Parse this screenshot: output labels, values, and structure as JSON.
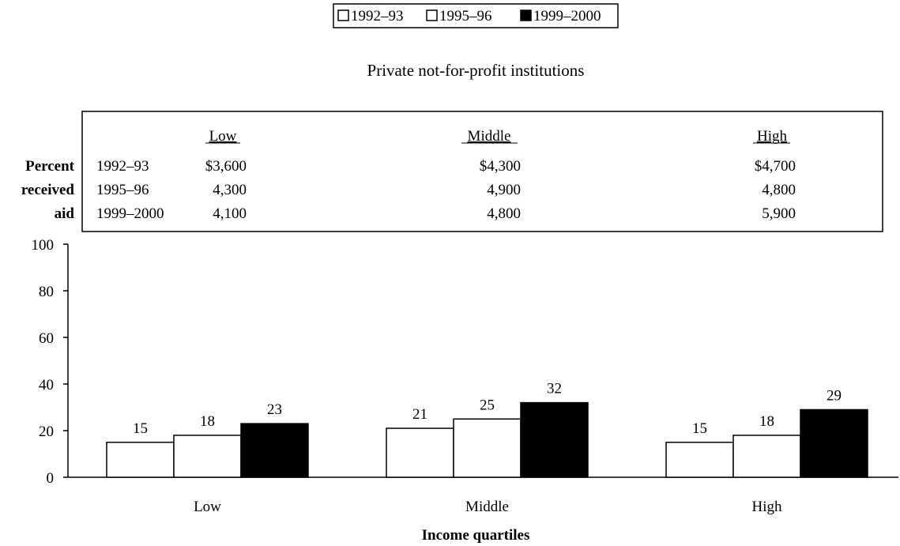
{
  "chart_data": {
    "type": "bar",
    "title": "Private not-for-profit institutions",
    "xlabel": "Income quartiles",
    "ylabel": "Percent received aid",
    "ylabel_lines": [
      "Percent",
      "received",
      "aid"
    ],
    "categories": [
      "Low",
      "Middle",
      "High"
    ],
    "ylim": [
      0,
      100
    ],
    "yticks": [
      0,
      20,
      40,
      60,
      80,
      100
    ],
    "legend_position": "top-center",
    "series": [
      {
        "name": "1992–93",
        "values": [
          15,
          21,
          15
        ],
        "color": "#ffffff"
      },
      {
        "name": "1995–96",
        "values": [
          18,
          25,
          18
        ],
        "color": "#ffffff"
      },
      {
        "name": "1999–2000",
        "values": [
          23,
          32,
          29
        ],
        "color": "#000000"
      }
    ],
    "data_labels": [
      [
        "15",
        "21",
        "15"
      ],
      [
        "18",
        "25",
        "18"
      ],
      [
        "23",
        "32",
        "29"
      ]
    ],
    "amount_table": {
      "headers": [
        "Low",
        "Middle",
        "High"
      ],
      "rows": [
        {
          "year": "1992–93",
          "values": [
            "$3,600",
            "$4,300",
            "$4,700"
          ]
        },
        {
          "year": "1995–96",
          "values": [
            "4,300",
            "4,900",
            "4,800"
          ]
        },
        {
          "year": "1999–2000",
          "values": [
            "4,100",
            "4,800",
            "5,900"
          ]
        }
      ]
    }
  }
}
